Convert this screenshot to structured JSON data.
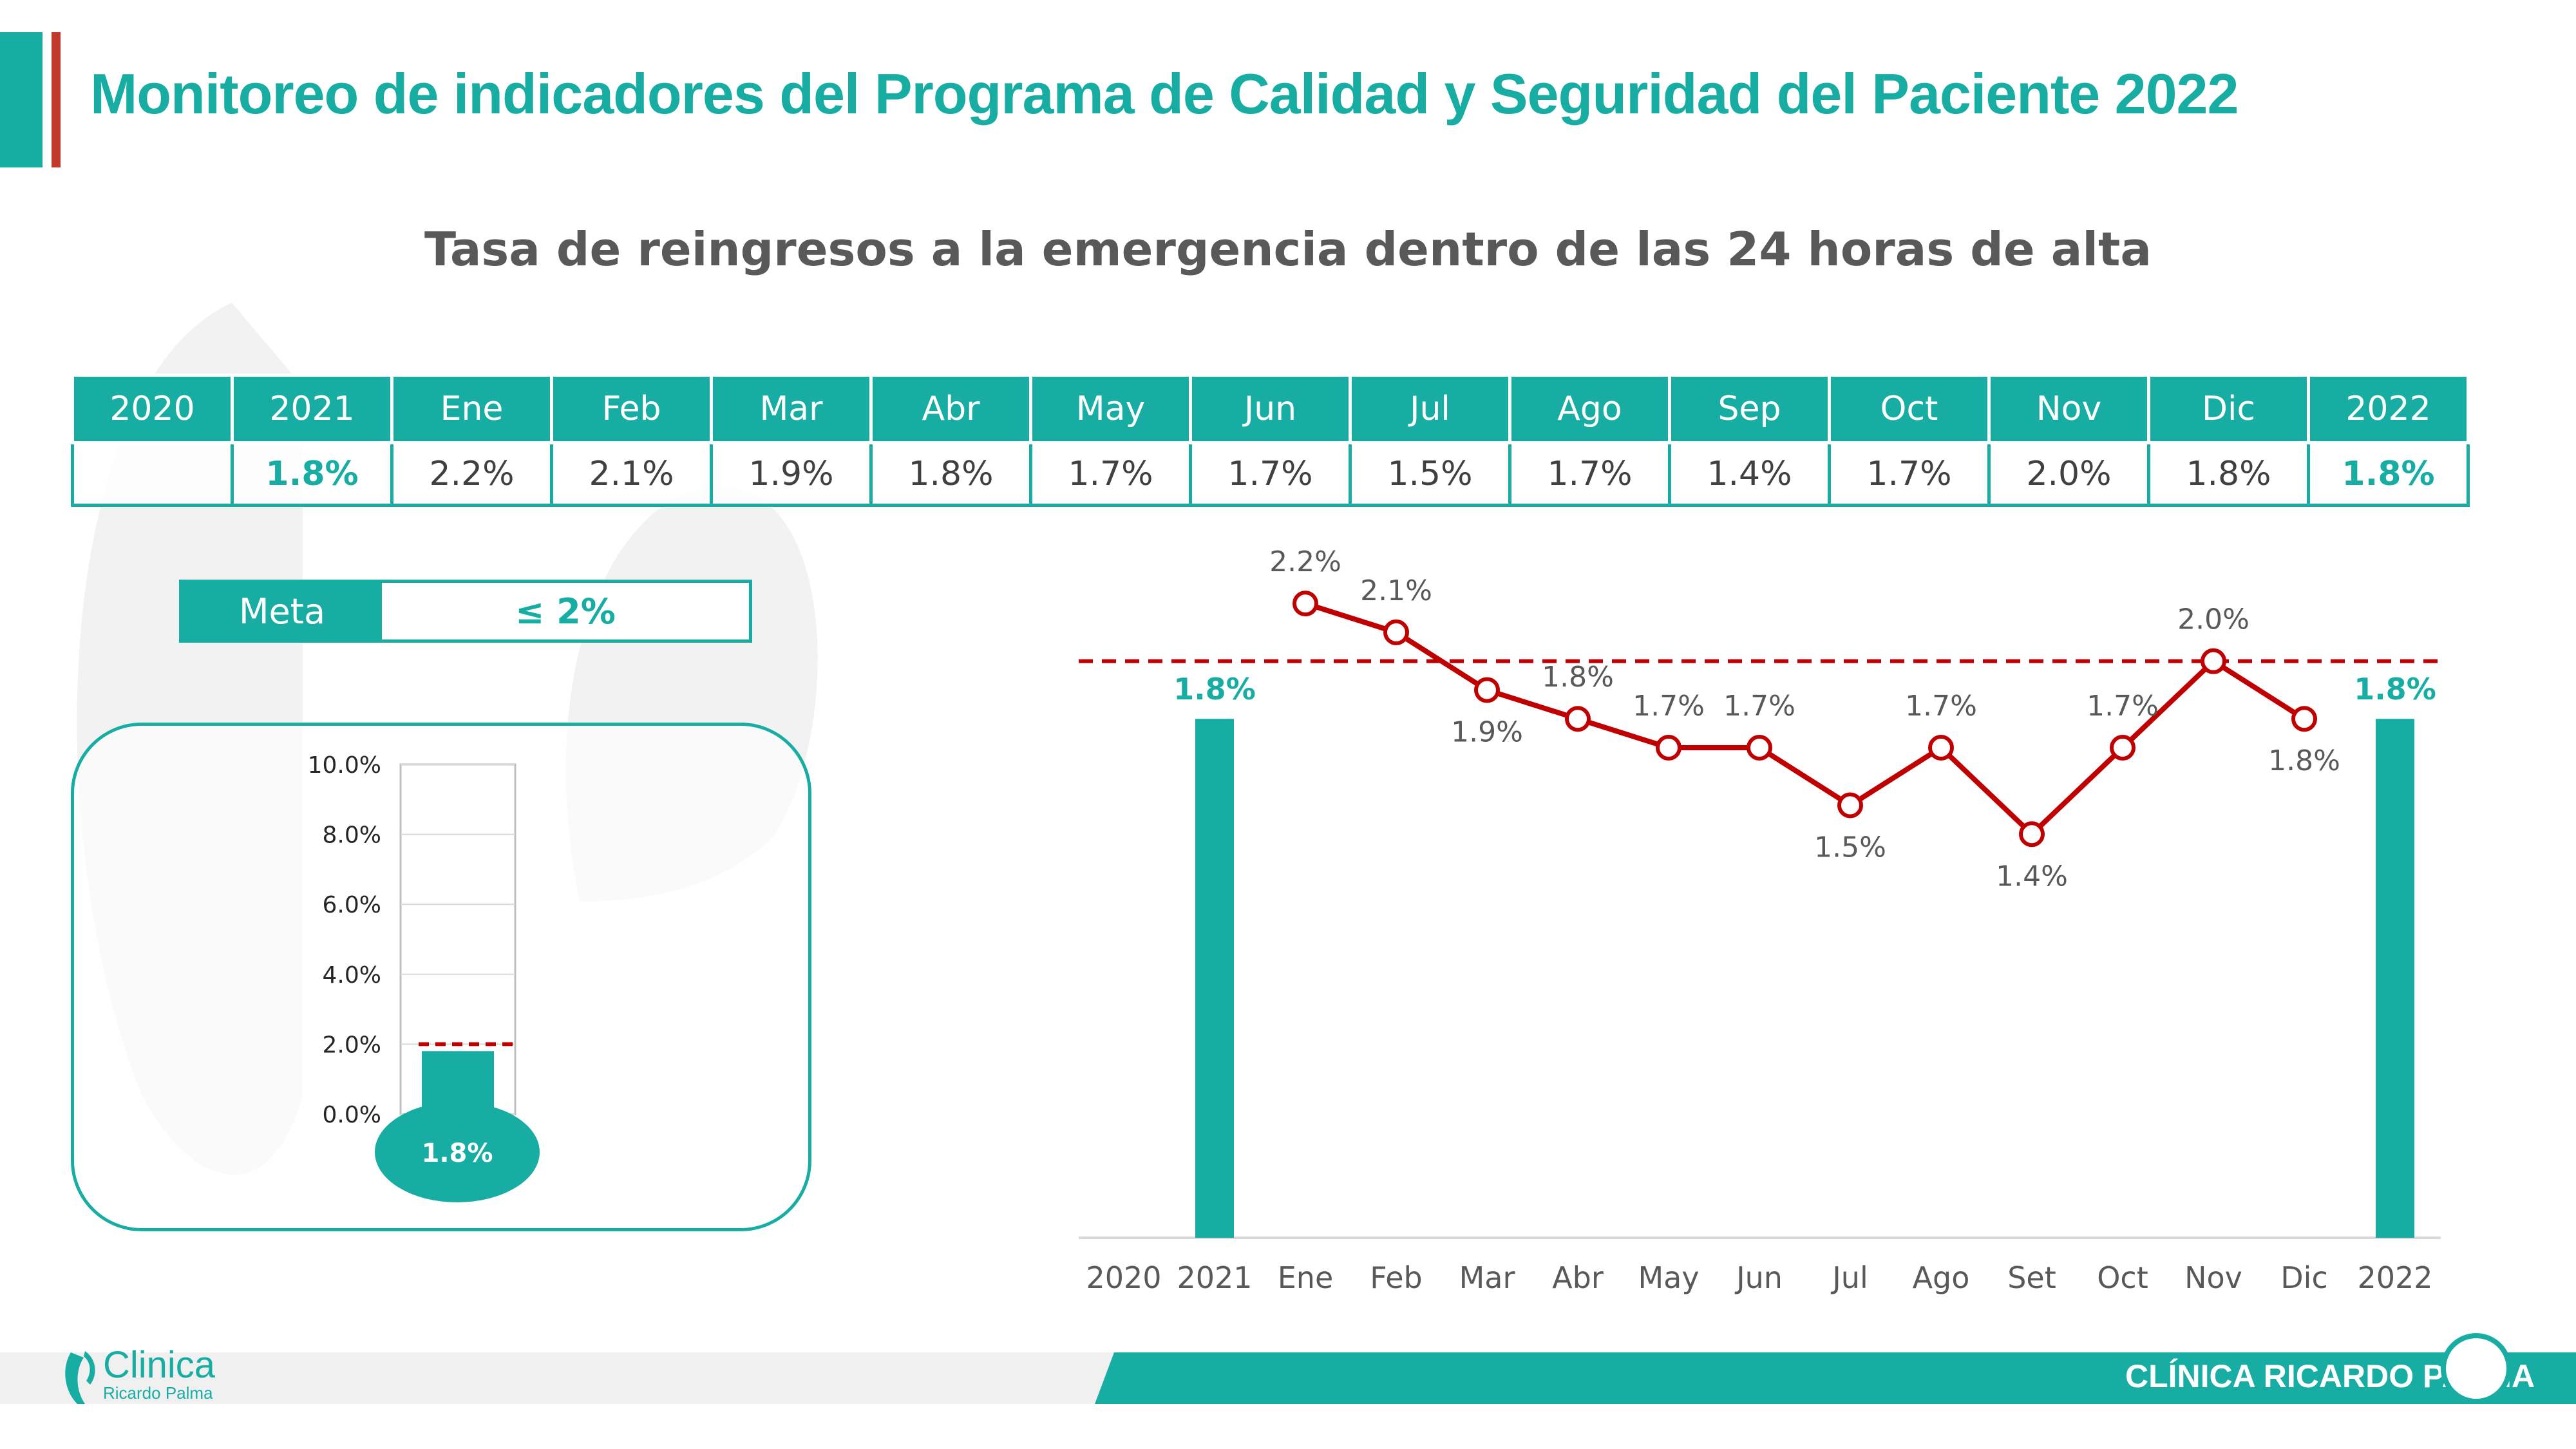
{
  "header": {
    "title": "Monitoreo de indicadores del Programa de Calidad y Seguridad del Paciente 2022",
    "chart_title": "Tasa de reingresos a la emergencia dentro de las 24 horas de alta"
  },
  "table": {
    "headers": [
      "2020",
      "2021",
      "Ene",
      "Feb",
      "Mar",
      "Abr",
      "May",
      "Jun",
      "Jul",
      "Ago",
      "Sep",
      "Oct",
      "Nov",
      "Dic",
      "2022"
    ],
    "values": [
      "",
      "1.8%",
      "2.2%",
      "2.1%",
      "1.9%",
      "1.8%",
      "1.7%",
      "1.7%",
      "1.5%",
      "1.7%",
      "1.4%",
      "1.7%",
      "2.0%",
      "1.8%",
      "1.8%"
    ]
  },
  "meta": {
    "label": "Meta",
    "value": "≤ 2%"
  },
  "gauge": {
    "ticks": [
      "10.0%",
      "8.0%",
      "6.0%",
      "4.0%",
      "2.0%",
      "0.0%"
    ],
    "value": 1.8,
    "target": 2.0,
    "value_label": "1.8%"
  },
  "footer": {
    "brand": "CLÍNICA RICARDO PALMA",
    "logo_word": "Clinica",
    "logo_sub": "Ricardo Palma"
  },
  "colors": {
    "teal": "#17ada3",
    "red": "#c00000",
    "title_red": "#c0392b"
  },
  "chart_data": {
    "type": "bar+line",
    "categories": [
      "2020",
      "2021",
      "Ene",
      "Feb",
      "Mar",
      "Abr",
      "May",
      "Jun",
      "Jul",
      "Ago",
      "Set",
      "Oct",
      "Nov",
      "Dic",
      "2022"
    ],
    "bars": [
      {
        "category": "2021",
        "value": 1.8,
        "label": "1.8%"
      },
      {
        "category": "2022",
        "value": 1.8,
        "label": "1.8%"
      }
    ],
    "line": {
      "categories": [
        "Ene",
        "Feb",
        "Mar",
        "Abr",
        "May",
        "Jun",
        "Jul",
        "Ago",
        "Set",
        "Oct",
        "Nov",
        "Dic"
      ],
      "values": [
        2.2,
        2.1,
        1.9,
        1.8,
        1.7,
        1.7,
        1.5,
        1.7,
        1.4,
        1.7,
        2.0,
        1.8
      ],
      "labels": [
        "2.2%",
        "2.1%",
        "1.9%",
        "1.8%",
        "1.7%",
        "1.7%",
        "1.5%",
        "1.7%",
        "1.4%",
        "1.7%",
        "2.0%",
        "1.8%"
      ],
      "label_positions": [
        "above",
        "above",
        "below",
        "above",
        "above",
        "above",
        "below",
        "above",
        "below",
        "above",
        "above",
        "below"
      ]
    },
    "target": 2.0,
    "ylim": [
      0,
      2.35
    ],
    "grid": false,
    "legend": "none"
  }
}
